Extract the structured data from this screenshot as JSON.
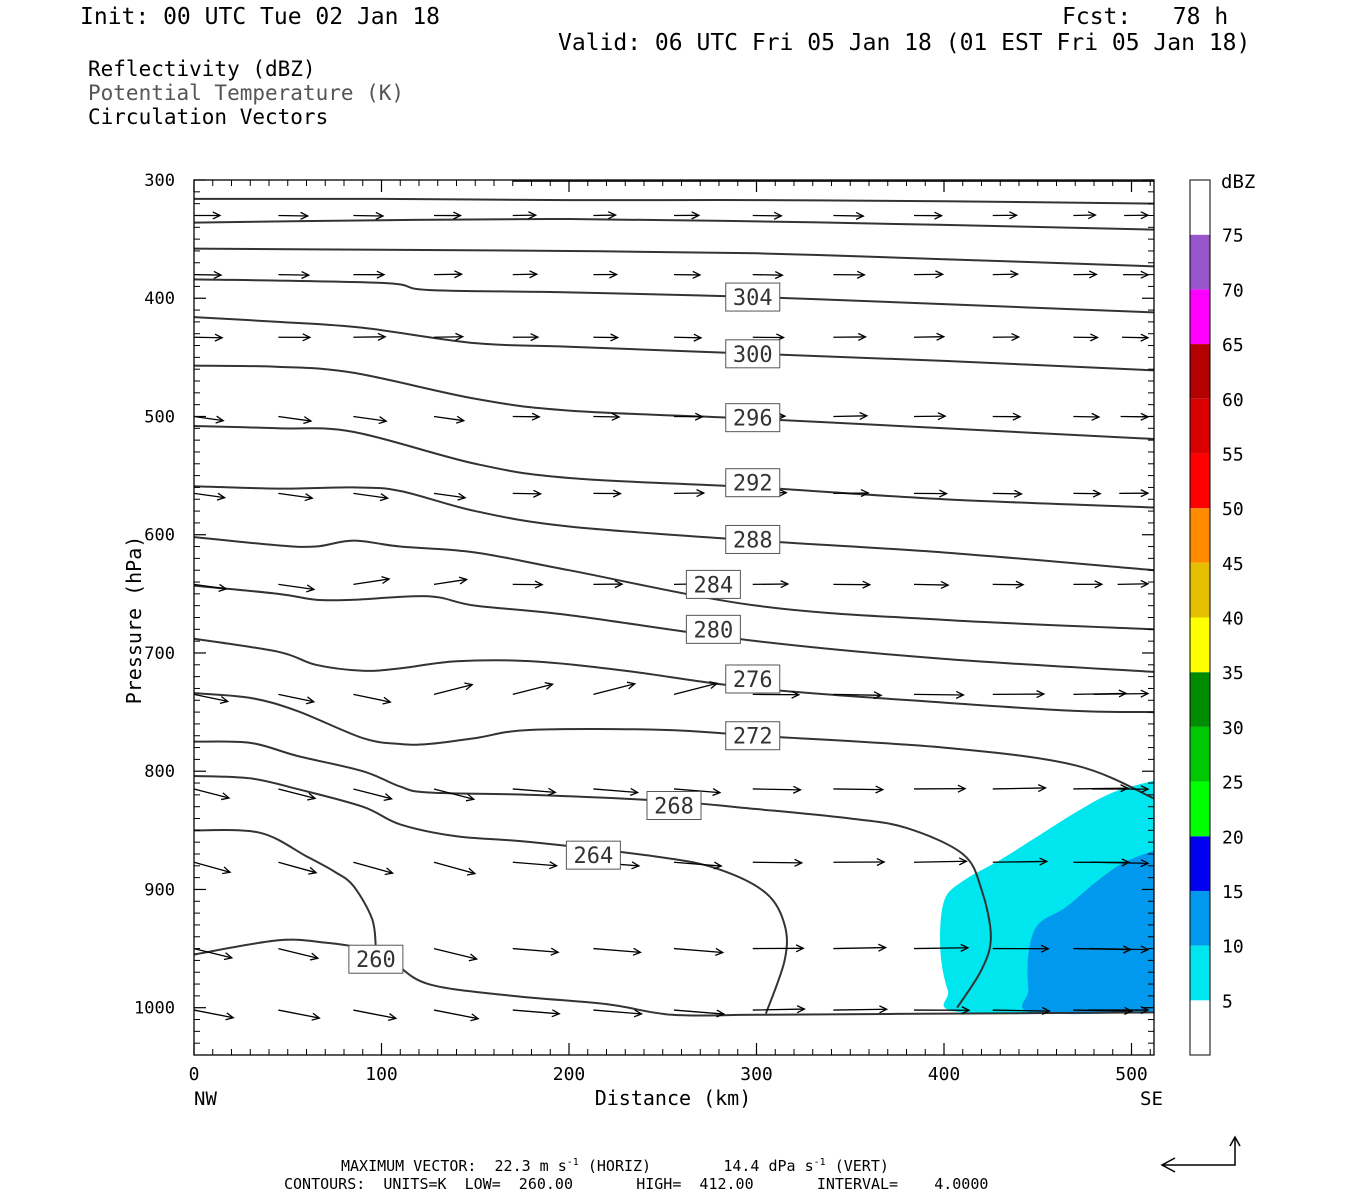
{
  "header": {
    "init": "Init: 00 UTC Tue 02 Jan 18",
    "fcst": "Fcst:   78 h",
    "valid": "Valid: 06 UTC Fri 05 Jan 18 (01 EST Fri 05 Jan 18)",
    "field_reflectivity": "Reflectivity (dBZ)",
    "field_theta": "Potential Temperature (K)",
    "field_vectors": "Circulation Vectors"
  },
  "colors": {
    "theta_contour": "#333333",
    "vector": "#000000",
    "dbz_5": "#00e6ee",
    "dbz_10": "#0099ee"
  },
  "chart_data": {
    "type": "cross-section",
    "xlabel": "Distance (km)",
    "ylabel": "Pressure (hPa)",
    "x_ticks": [
      "0",
      "100",
      "200",
      "300",
      "400",
      "500"
    ],
    "x_end_labels": {
      "left": "NW",
      "right": "SE"
    },
    "y_ticks": [
      "300",
      "400",
      "500",
      "600",
      "700",
      "800",
      "900",
      "1000"
    ],
    "xlim": [
      0,
      512
    ],
    "ylim": [
      1040,
      300
    ],
    "y_scale": "linear (pressure, inverted)",
    "colorbar": {
      "unit": "dBZ",
      "levels": [
        "5",
        "10",
        "15",
        "20",
        "25",
        "30",
        "35",
        "40",
        "45",
        "50",
        "55",
        "60",
        "65",
        "70",
        "75"
      ],
      "colors": [
        "#ffffff",
        "#00e6ee",
        "#0099ee",
        "#0000ee",
        "#00ff00",
        "#00c800",
        "#008c00",
        "#ffff00",
        "#e6c000",
        "#ff8c00",
        "#ff0000",
        "#d90000",
        "#b30000",
        "#ff00ff",
        "#9955cc",
        "#ffffff"
      ]
    },
    "theta_labels": [
      {
        "label": "304",
        "x": 298,
        "p": 399
      },
      {
        "label": "300",
        "x": 298,
        "p": 447
      },
      {
        "label": "296",
        "x": 298,
        "p": 501
      },
      {
        "label": "292",
        "x": 298,
        "p": 556
      },
      {
        "label": "288",
        "x": 298,
        "p": 604
      },
      {
        "label": "284",
        "x": 277,
        "p": 642
      },
      {
        "label": "280",
        "x": 277,
        "p": 680
      },
      {
        "label": "276",
        "x": 298,
        "p": 722
      },
      {
        "label": "272",
        "x": 298,
        "p": 770
      },
      {
        "label": "268",
        "x": 256,
        "p": 829
      },
      {
        "label": "264",
        "x": 213,
        "p": 871
      },
      {
        "label": "260",
        "x": 97,
        "p": 959
      }
    ],
    "theta_contours": [
      [
        [
          0,
          316
        ],
        [
          100,
          316
        ],
        [
          200,
          317
        ],
        [
          300,
          317
        ],
        [
          400,
          318
        ],
        [
          512,
          320
        ]
      ],
      [
        [
          0,
          336
        ],
        [
          100,
          334
        ],
        [
          200,
          333
        ],
        [
          300,
          335
        ],
        [
          400,
          338
        ],
        [
          512,
          342
        ]
      ],
      [
        [
          0,
          358
        ],
        [
          100,
          359
        ],
        [
          200,
          360
        ],
        [
          300,
          362
        ],
        [
          400,
          367
        ],
        [
          512,
          373
        ]
      ],
      [
        [
          0,
          384
        ],
        [
          100,
          387
        ],
        [
          125,
          393
        ],
        [
          200,
          395
        ],
        [
          300,
          399
        ],
        [
          400,
          405
        ],
        [
          512,
          412
        ]
      ],
      [
        [
          0,
          416
        ],
        [
          45,
          420
        ],
        [
          90,
          425
        ],
        [
          150,
          438
        ],
        [
          200,
          441
        ],
        [
          300,
          447
        ],
        [
          400,
          453
        ],
        [
          512,
          461
        ]
      ],
      [
        [
          0,
          457
        ],
        [
          45,
          458
        ],
        [
          85,
          463
        ],
        [
          150,
          485
        ],
        [
          200,
          495
        ],
        [
          300,
          502
        ],
        [
          400,
          510
        ],
        [
          512,
          519
        ]
      ],
      [
        [
          0,
          508
        ],
        [
          45,
          510
        ],
        [
          85,
          513
        ],
        [
          150,
          540
        ],
        [
          200,
          552
        ],
        [
          300,
          560
        ],
        [
          400,
          570
        ],
        [
          512,
          577
        ]
      ],
      [
        [
          0,
          559
        ],
        [
          45,
          561
        ],
        [
          85,
          560
        ],
        [
          110,
          563
        ],
        [
          150,
          580
        ],
        [
          200,
          593
        ],
        [
          300,
          605
        ],
        [
          400,
          615
        ],
        [
          512,
          630
        ]
      ],
      [
        [
          0,
          602
        ],
        [
          45,
          609
        ],
        [
          65,
          610
        ],
        [
          85,
          605
        ],
        [
          110,
          610
        ],
        [
          150,
          615
        ],
        [
          200,
          630
        ],
        [
          300,
          660
        ],
        [
          400,
          672
        ],
        [
          512,
          680
        ]
      ],
      [
        [
          0,
          643
        ],
        [
          45,
          650
        ],
        [
          65,
          655
        ],
        [
          85,
          655
        ],
        [
          125,
          652
        ],
        [
          150,
          660
        ],
        [
          200,
          668
        ],
        [
          300,
          690
        ],
        [
          400,
          705
        ],
        [
          512,
          716
        ]
      ],
      [
        [
          0,
          688
        ],
        [
          45,
          699
        ],
        [
          65,
          710
        ],
        [
          90,
          715
        ],
        [
          110,
          713
        ],
        [
          140,
          707
        ],
        [
          180,
          707
        ],
        [
          230,
          715
        ],
        [
          300,
          730
        ],
        [
          400,
          742
        ],
        [
          470,
          749
        ],
        [
          512,
          750
        ]
      ],
      [
        [
          0,
          734
        ],
        [
          30,
          738
        ],
        [
          55,
          749
        ],
        [
          90,
          772
        ],
        [
          110,
          777
        ],
        [
          125,
          777
        ],
        [
          150,
          772
        ],
        [
          180,
          765
        ],
        [
          250,
          765
        ],
        [
          300,
          770
        ],
        [
          400,
          780
        ],
        [
          470,
          795
        ],
        [
          512,
          823
        ]
      ],
      [
        [
          0,
          775
        ],
        [
          30,
          776
        ],
        [
          55,
          787
        ],
        [
          90,
          800
        ],
        [
          110,
          813
        ],
        [
          125,
          818
        ],
        [
          180,
          820
        ],
        [
          250,
          825
        ],
        [
          300,
          832
        ],
        [
          350,
          840
        ],
        [
          380,
          848
        ],
        [
          410,
          870
        ],
        [
          420,
          900
        ],
        [
          425,
          940
        ],
        [
          420,
          968
        ],
        [
          407,
          1000
        ]
      ],
      [
        [
          0,
          804
        ],
        [
          30,
          806
        ],
        [
          55,
          815
        ],
        [
          90,
          830
        ],
        [
          110,
          845
        ],
        [
          140,
          855
        ],
        [
          180,
          860
        ],
        [
          250,
          873
        ],
        [
          280,
          883
        ],
        [
          305,
          903
        ],
        [
          315,
          930
        ],
        [
          315,
          960
        ],
        [
          305,
          1005
        ]
      ],
      [
        [
          0,
          850
        ],
        [
          35,
          852
        ],
        [
          60,
          872
        ],
        [
          75,
          885
        ],
        [
          85,
          897
        ],
        [
          95,
          925
        ],
        [
          97,
          950
        ]
      ],
      [
        [
          0,
          955
        ],
        [
          45,
          943
        ],
        [
          70,
          945
        ],
        [
          90,
          950
        ],
        [
          105,
          960
        ],
        [
          125,
          980
        ],
        [
          170,
          990
        ],
        [
          220,
          997
        ],
        [
          255,
          1006
        ],
        [
          300,
          1006
        ],
        [
          400,
          1005
        ],
        [
          512,
          1004
        ]
      ]
    ],
    "vector_rows": {
      "p": [
        330,
        380,
        433,
        500,
        565,
        642,
        735,
        815,
        877,
        950,
        1002
      ],
      "x": [
        0,
        45,
        85,
        128,
        170,
        213,
        256,
        298,
        341,
        384,
        426,
        469,
        512
      ]
    }
  },
  "footer": {
    "max_vector_1": "MAXIMUM VECTOR:  22.3 m s",
    "max_vector_sup1": "-1",
    "max_vector_2": " (HORIZ)        14.4 dPa s",
    "max_vector_sup2": "-1",
    "max_vector_3": " (VERT)",
    "contours": "CONTOURS:  UNITS=K  LOW=  260.00       HIGH=  412.00       INTERVAL=    4.0000"
  }
}
